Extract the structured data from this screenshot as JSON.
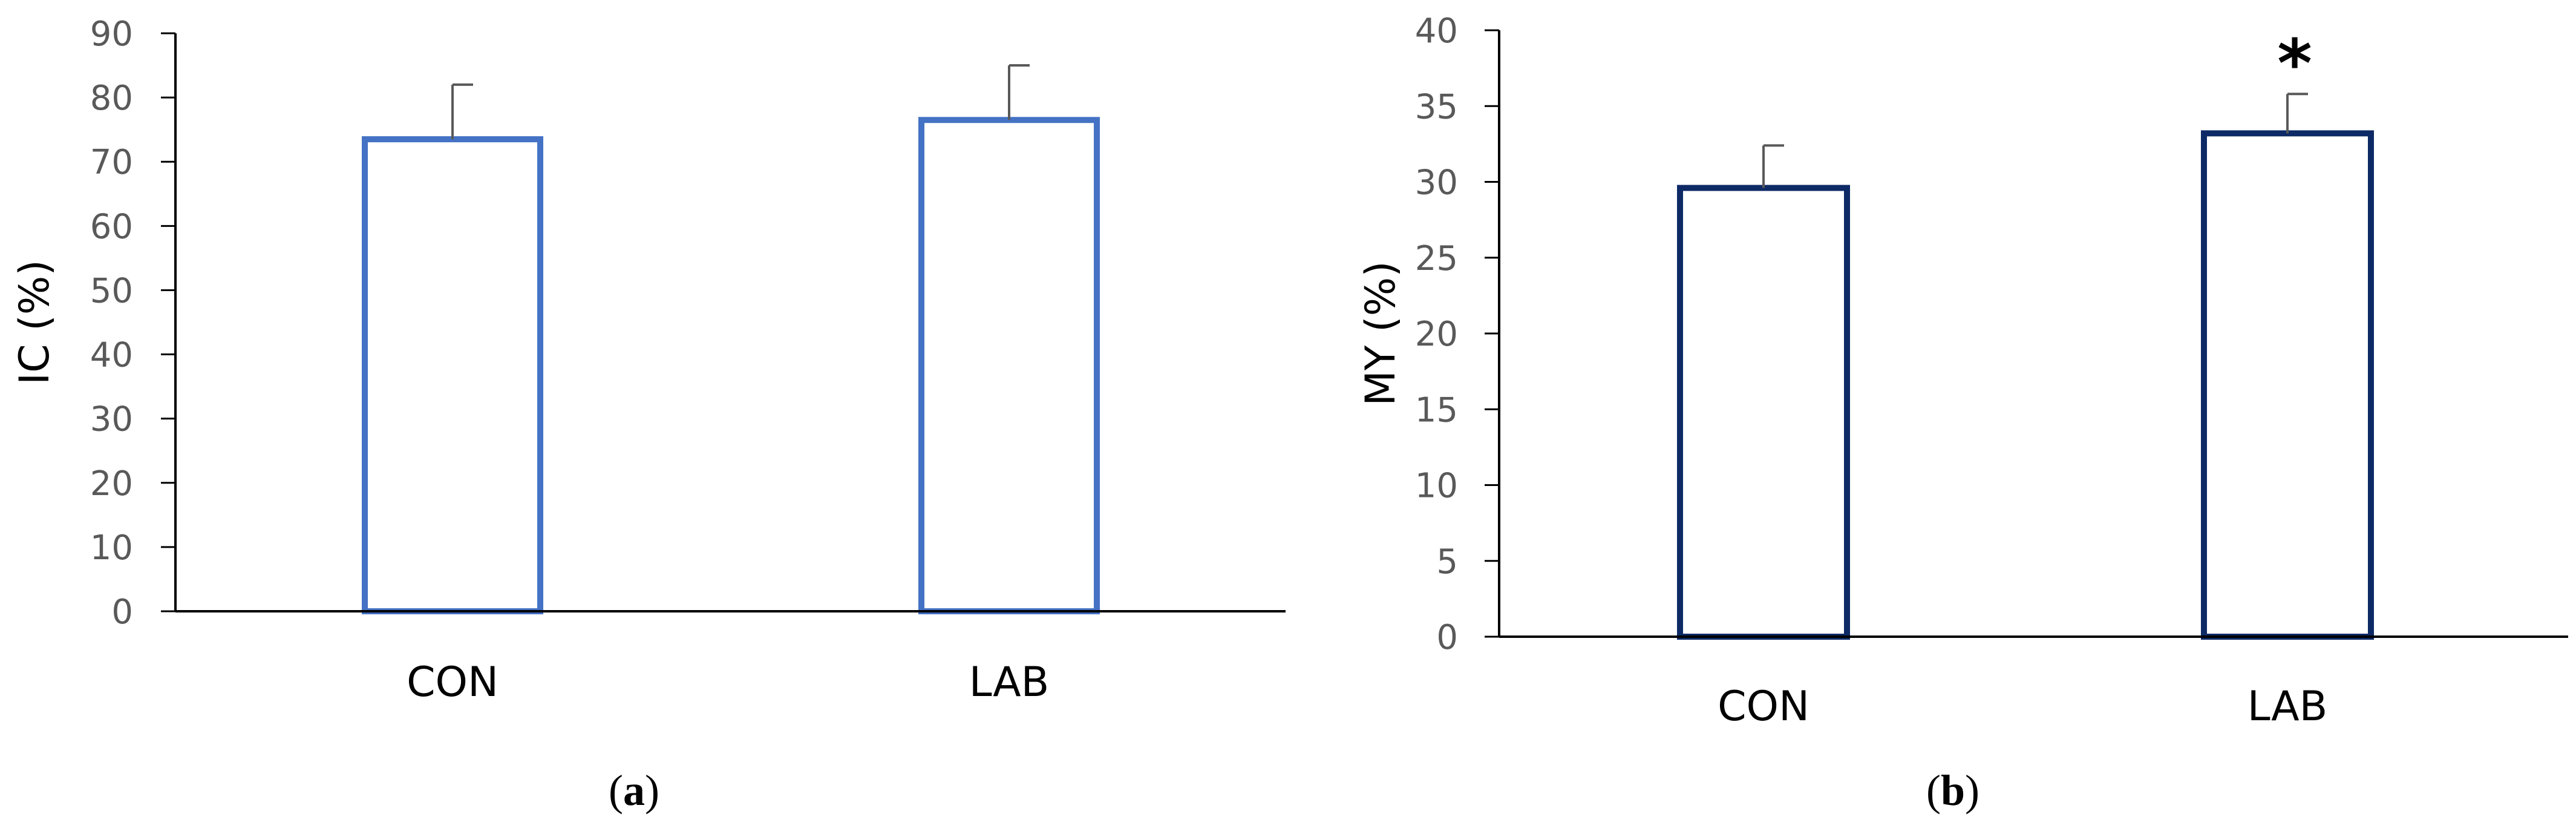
{
  "chart_data": [
    {
      "type": "bar",
      "panel_label": "a",
      "categories": [
        "CON",
        "LAB"
      ],
      "values": [
        73.5,
        76.5
      ],
      "error": [
        8.5,
        8.5
      ],
      "ylabel": "IC (%)",
      "ylim": [
        0,
        90
      ],
      "yticks": [
        "0",
        "10",
        "20",
        "30",
        "40",
        "50",
        "60",
        "70",
        "80",
        "90"
      ],
      "ytick_values": [
        0,
        10,
        20,
        30,
        40,
        50,
        60,
        70,
        80,
        90
      ],
      "bar_color": "#4472C4",
      "annotations": [
        "",
        ""
      ],
      "grid": false
    },
    {
      "type": "bar",
      "panel_label": "b",
      "categories": [
        "CON",
        "LAB"
      ],
      "values": [
        29.6,
        33.2
      ],
      "error": [
        2.8,
        2.6
      ],
      "ylabel": "MY (%)",
      "ylim": [
        0,
        40
      ],
      "yticks": [
        "0",
        "5",
        "10",
        "15",
        "20",
        "25",
        "30",
        "35",
        "40"
      ],
      "ytick_values": [
        0,
        5,
        10,
        15,
        20,
        25,
        30,
        35,
        40
      ],
      "bar_color": "#0E2A66",
      "annotations": [
        "",
        "*"
      ],
      "grid": false
    }
  ]
}
